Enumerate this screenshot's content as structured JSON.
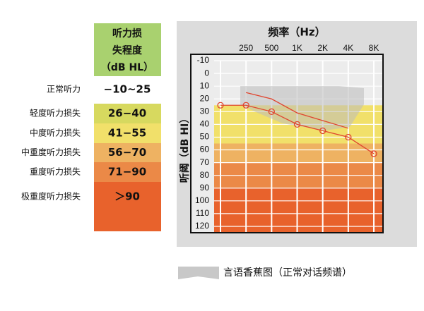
{
  "legend_table": {
    "header": [
      "听力损",
      "失程度",
      "（dB HL）"
    ],
    "header_color": "#a9d16f",
    "rows": [
      {
        "label": "正常听力",
        "range": "−10~25",
        "color": "#ffffff"
      },
      {
        "label": "轻度听力损失",
        "range": "26−40",
        "color": "#d7d95f"
      },
      {
        "label": "中度听力损失",
        "range": "41−55",
        "color": "#f1e06a"
      },
      {
        "label": "中重度听力损失",
        "range": "56−70",
        "color": "#eeb262"
      },
      {
        "label": "重度听力损失",
        "range": "71−90",
        "color": "#eb8947"
      },
      {
        "label": "极重度听力损失",
        "range": "＞90",
        "color": "#e8622c"
      }
    ]
  },
  "chart_data": {
    "type": "line",
    "title": "频率（Hz）",
    "y_label": "听阈（dB HI）",
    "categories": [
      null,
      "250",
      "500",
      "1K",
      "2K",
      "4K",
      "8K"
    ],
    "series": [
      {
        "color": "#e0452f",
        "marker": "circle",
        "values": [
          25,
          25,
          30,
          40,
          45,
          50,
          63
        ]
      },
      {
        "color": "#e0452f",
        "marker": "none",
        "values": [
          null,
          15,
          20,
          31,
          37,
          43,
          null
        ]
      }
    ],
    "ylim": [
      -15,
      125
    ],
    "y_inverted": true,
    "yticks": [
      -10,
      0,
      10,
      20,
      30,
      40,
      50,
      60,
      70,
      80,
      90,
      100,
      110,
      120
    ],
    "grid": true,
    "bands": [
      {
        "from": 25,
        "to": 55,
        "color": "#f1e06a"
      },
      {
        "from": 55,
        "to": 70,
        "color": "#eeb262"
      },
      {
        "from": 70,
        "to": 90,
        "color": "#eb8947"
      },
      {
        "from": 90,
        "to": 125,
        "color": "#e8622c"
      }
    ],
    "note": "言语香蕉图（正常对话频谱）"
  }
}
